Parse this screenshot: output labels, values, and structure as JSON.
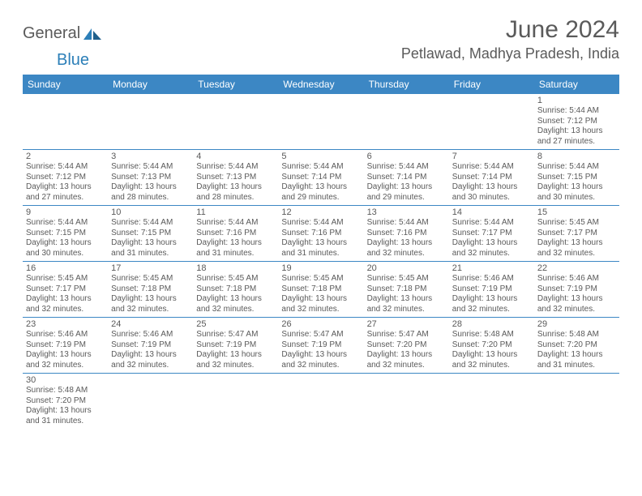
{
  "logo": {
    "text1": "General",
    "text2": "Blue"
  },
  "title": "June 2024",
  "location": "Petlawad, Madhya Pradesh, India",
  "colors": {
    "header_bg": "#3c87c4",
    "header_text": "#ffffff",
    "divider": "#3c87c4",
    "text": "#5a5a5a",
    "logo_gray": "#5a5a5a",
    "logo_blue": "#2c7fb8",
    "background": "#ffffff"
  },
  "typography": {
    "title_fontsize": 30,
    "location_fontsize": 18,
    "logo_fontsize": 20,
    "dayheader_fontsize": 12,
    "daynum_fontsize": 11,
    "detail_fontsize": 10
  },
  "layout": {
    "columns": 7,
    "rows": 6,
    "first_day_index": 6
  },
  "day_names": [
    "Sunday",
    "Monday",
    "Tuesday",
    "Wednesday",
    "Thursday",
    "Friday",
    "Saturday"
  ],
  "days": [
    {
      "n": 1,
      "sunrise": "5:44 AM",
      "sunset": "7:12 PM",
      "daylight": "13 hours and 27 minutes."
    },
    {
      "n": 2,
      "sunrise": "5:44 AM",
      "sunset": "7:12 PM",
      "daylight": "13 hours and 27 minutes."
    },
    {
      "n": 3,
      "sunrise": "5:44 AM",
      "sunset": "7:13 PM",
      "daylight": "13 hours and 28 minutes."
    },
    {
      "n": 4,
      "sunrise": "5:44 AM",
      "sunset": "7:13 PM",
      "daylight": "13 hours and 28 minutes."
    },
    {
      "n": 5,
      "sunrise": "5:44 AM",
      "sunset": "7:14 PM",
      "daylight": "13 hours and 29 minutes."
    },
    {
      "n": 6,
      "sunrise": "5:44 AM",
      "sunset": "7:14 PM",
      "daylight": "13 hours and 29 minutes."
    },
    {
      "n": 7,
      "sunrise": "5:44 AM",
      "sunset": "7:14 PM",
      "daylight": "13 hours and 30 minutes."
    },
    {
      "n": 8,
      "sunrise": "5:44 AM",
      "sunset": "7:15 PM",
      "daylight": "13 hours and 30 minutes."
    },
    {
      "n": 9,
      "sunrise": "5:44 AM",
      "sunset": "7:15 PM",
      "daylight": "13 hours and 30 minutes."
    },
    {
      "n": 10,
      "sunrise": "5:44 AM",
      "sunset": "7:15 PM",
      "daylight": "13 hours and 31 minutes."
    },
    {
      "n": 11,
      "sunrise": "5:44 AM",
      "sunset": "7:16 PM",
      "daylight": "13 hours and 31 minutes."
    },
    {
      "n": 12,
      "sunrise": "5:44 AM",
      "sunset": "7:16 PM",
      "daylight": "13 hours and 31 minutes."
    },
    {
      "n": 13,
      "sunrise": "5:44 AM",
      "sunset": "7:16 PM",
      "daylight": "13 hours and 32 minutes."
    },
    {
      "n": 14,
      "sunrise": "5:44 AM",
      "sunset": "7:17 PM",
      "daylight": "13 hours and 32 minutes."
    },
    {
      "n": 15,
      "sunrise": "5:45 AM",
      "sunset": "7:17 PM",
      "daylight": "13 hours and 32 minutes."
    },
    {
      "n": 16,
      "sunrise": "5:45 AM",
      "sunset": "7:17 PM",
      "daylight": "13 hours and 32 minutes."
    },
    {
      "n": 17,
      "sunrise": "5:45 AM",
      "sunset": "7:18 PM",
      "daylight": "13 hours and 32 minutes."
    },
    {
      "n": 18,
      "sunrise": "5:45 AM",
      "sunset": "7:18 PM",
      "daylight": "13 hours and 32 minutes."
    },
    {
      "n": 19,
      "sunrise": "5:45 AM",
      "sunset": "7:18 PM",
      "daylight": "13 hours and 32 minutes."
    },
    {
      "n": 20,
      "sunrise": "5:45 AM",
      "sunset": "7:18 PM",
      "daylight": "13 hours and 32 minutes."
    },
    {
      "n": 21,
      "sunrise": "5:46 AM",
      "sunset": "7:19 PM",
      "daylight": "13 hours and 32 minutes."
    },
    {
      "n": 22,
      "sunrise": "5:46 AM",
      "sunset": "7:19 PM",
      "daylight": "13 hours and 32 minutes."
    },
    {
      "n": 23,
      "sunrise": "5:46 AM",
      "sunset": "7:19 PM",
      "daylight": "13 hours and 32 minutes."
    },
    {
      "n": 24,
      "sunrise": "5:46 AM",
      "sunset": "7:19 PM",
      "daylight": "13 hours and 32 minutes."
    },
    {
      "n": 25,
      "sunrise": "5:47 AM",
      "sunset": "7:19 PM",
      "daylight": "13 hours and 32 minutes."
    },
    {
      "n": 26,
      "sunrise": "5:47 AM",
      "sunset": "7:19 PM",
      "daylight": "13 hours and 32 minutes."
    },
    {
      "n": 27,
      "sunrise": "5:47 AM",
      "sunset": "7:20 PM",
      "daylight": "13 hours and 32 minutes."
    },
    {
      "n": 28,
      "sunrise": "5:48 AM",
      "sunset": "7:20 PM",
      "daylight": "13 hours and 32 minutes."
    },
    {
      "n": 29,
      "sunrise": "5:48 AM",
      "sunset": "7:20 PM",
      "daylight": "13 hours and 31 minutes."
    },
    {
      "n": 30,
      "sunrise": "5:48 AM",
      "sunset": "7:20 PM",
      "daylight": "13 hours and 31 minutes."
    }
  ],
  "labels": {
    "sunrise": "Sunrise:",
    "sunset": "Sunset:",
    "daylight": "Daylight:"
  }
}
